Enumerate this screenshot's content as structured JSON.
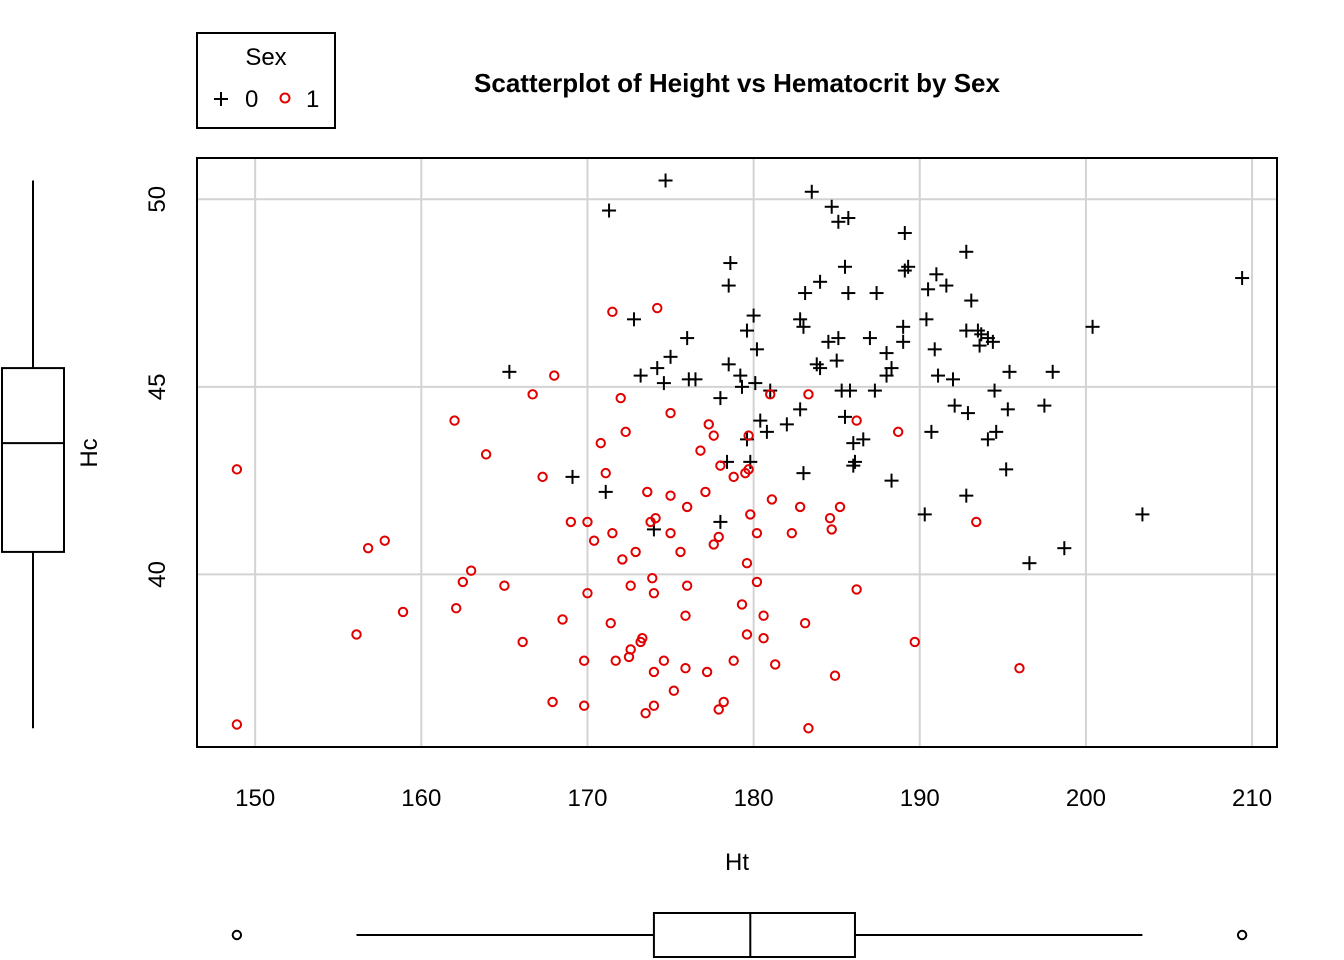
{
  "chart_data": {
    "type": "scatter",
    "title": "Scatterplot of Height vs Hematocrit by Sex",
    "xlabel": "Ht",
    "ylabel": "Hc",
    "xlim": [
      146.5,
      211.5
    ],
    "ylim": [
      35.4,
      51.1
    ],
    "xticks": [
      150,
      160,
      170,
      180,
      190,
      200,
      210
    ],
    "yticks": [
      40,
      45,
      50
    ],
    "grid": true,
    "legend": {
      "title": "Sex",
      "placement": "top-left",
      "entries": [
        "0",
        "1"
      ]
    },
    "series": [
      {
        "name": "0",
        "marker": "plus",
        "color": "#000000",
        "points": [
          [
            174.7,
            50.5
          ],
          [
            171.3,
            49.7
          ],
          [
            183.5,
            50.2
          ],
          [
            184.7,
            49.8
          ],
          [
            185.1,
            49.4
          ],
          [
            185.7,
            49.5
          ],
          [
            189.1,
            49.1
          ],
          [
            192.8,
            48.6
          ],
          [
            178.6,
            48.3
          ],
          [
            185.5,
            48.2
          ],
          [
            189.1,
            48.1
          ],
          [
            189.3,
            48.2
          ],
          [
            191.0,
            48.0
          ],
          [
            209.4,
            47.9
          ],
          [
            184.0,
            47.8
          ],
          [
            191.6,
            47.7
          ],
          [
            178.5,
            47.7
          ],
          [
            190.5,
            47.6
          ],
          [
            183.1,
            47.5
          ],
          [
            185.7,
            47.5
          ],
          [
            187.4,
            47.5
          ],
          [
            193.1,
            47.3
          ],
          [
            180.0,
            46.9
          ],
          [
            172.8,
            46.8
          ],
          [
            182.8,
            46.8
          ],
          [
            190.4,
            46.8
          ],
          [
            200.4,
            46.6
          ],
          [
            183.0,
            46.6
          ],
          [
            189.0,
            46.6
          ],
          [
            179.6,
            46.5
          ],
          [
            192.8,
            46.5
          ],
          [
            193.5,
            46.5
          ],
          [
            193.7,
            46.4
          ],
          [
            176.0,
            46.3
          ],
          [
            185.1,
            46.3
          ],
          [
            187.0,
            46.3
          ],
          [
            194.1,
            46.3
          ],
          [
            189.0,
            46.2
          ],
          [
            184.5,
            46.2
          ],
          [
            194.4,
            46.2
          ],
          [
            193.6,
            46.1
          ],
          [
            180.2,
            46.0
          ],
          [
            190.9,
            46.0
          ],
          [
            188.0,
            45.9
          ],
          [
            175.0,
            45.8
          ],
          [
            185.0,
            45.7
          ],
          [
            178.5,
            45.6
          ],
          [
            183.8,
            45.6
          ],
          [
            184.0,
            45.5
          ],
          [
            174.2,
            45.5
          ],
          [
            165.3,
            45.4
          ],
          [
            195.4,
            45.4
          ],
          [
            198.0,
            45.4
          ],
          [
            173.2,
            45.3
          ],
          [
            188.3,
            45.5
          ],
          [
            179.2,
            45.3
          ],
          [
            191.1,
            45.3
          ],
          [
            188.0,
            45.3
          ],
          [
            176.1,
            45.2
          ],
          [
            176.5,
            45.2
          ],
          [
            192.0,
            45.2
          ],
          [
            174.6,
            45.1
          ],
          [
            180.1,
            45.1
          ],
          [
            179.3,
            45.0
          ],
          [
            181.0,
            44.9
          ],
          [
            185.3,
            44.9
          ],
          [
            187.3,
            44.9
          ],
          [
            194.5,
            44.9
          ],
          [
            185.8,
            44.9
          ],
          [
            178.0,
            44.7
          ],
          [
            192.1,
            44.5
          ],
          [
            197.5,
            44.5
          ],
          [
            182.8,
            44.4
          ],
          [
            195.3,
            44.4
          ],
          [
            192.9,
            44.3
          ],
          [
            185.5,
            44.2
          ],
          [
            180.4,
            44.1
          ],
          [
            182.0,
            44.0
          ],
          [
            180.8,
            43.8
          ],
          [
            190.7,
            43.8
          ],
          [
            194.6,
            43.8
          ],
          [
            194.1,
            43.6
          ],
          [
            179.6,
            43.6
          ],
          [
            186.6,
            43.6
          ],
          [
            186.0,
            43.5
          ],
          [
            179.8,
            43.0
          ],
          [
            178.4,
            43.0
          ],
          [
            186.1,
            43.0
          ],
          [
            186.0,
            42.9
          ],
          [
            195.2,
            42.8
          ],
          [
            183.0,
            42.7
          ],
          [
            169.1,
            42.6
          ],
          [
            188.3,
            42.5
          ],
          [
            171.1,
            42.2
          ],
          [
            192.8,
            42.1
          ],
          [
            178.0,
            41.4
          ],
          [
            174.0,
            41.2
          ],
          [
            190.3,
            41.6
          ],
          [
            203.4,
            41.6
          ],
          [
            198.7,
            40.7
          ],
          [
            196.6,
            40.3
          ]
        ]
      },
      {
        "name": "1",
        "marker": "circle",
        "color": "#e00000",
        "points": [
          [
            174.2,
            47.1
          ],
          [
            171.5,
            47.0
          ],
          [
            168.0,
            45.3
          ],
          [
            166.7,
            44.8
          ],
          [
            172.0,
            44.7
          ],
          [
            181.0,
            44.8
          ],
          [
            183.3,
            44.8
          ],
          [
            175.0,
            44.3
          ],
          [
            162.0,
            44.1
          ],
          [
            186.2,
            44.1
          ],
          [
            177.3,
            44.0
          ],
          [
            172.3,
            43.8
          ],
          [
            188.7,
            43.8
          ],
          [
            177.6,
            43.7
          ],
          [
            179.7,
            43.7
          ],
          [
            170.8,
            43.5
          ],
          [
            176.8,
            43.3
          ],
          [
            163.9,
            43.2
          ],
          [
            148.9,
            42.8
          ],
          [
            179.7,
            42.8
          ],
          [
            178.0,
            42.9
          ],
          [
            171.1,
            42.7
          ],
          [
            179.5,
            42.7
          ],
          [
            178.8,
            42.6
          ],
          [
            167.3,
            42.6
          ],
          [
            173.6,
            42.2
          ],
          [
            177.1,
            42.2
          ],
          [
            175.0,
            42.1
          ],
          [
            181.1,
            42.0
          ],
          [
            176.0,
            41.8
          ],
          [
            182.8,
            41.8
          ],
          [
            185.2,
            41.8
          ],
          [
            179.8,
            41.6
          ],
          [
            184.6,
            41.5
          ],
          [
            169.0,
            41.4
          ],
          [
            170.0,
            41.4
          ],
          [
            173.8,
            41.4
          ],
          [
            174.1,
            41.5
          ],
          [
            193.4,
            41.4
          ],
          [
            184.7,
            41.2
          ],
          [
            171.5,
            41.1
          ],
          [
            175.0,
            41.1
          ],
          [
            180.2,
            41.1
          ],
          [
            182.3,
            41.1
          ],
          [
            177.9,
            41.0
          ],
          [
            170.4,
            40.9
          ],
          [
            157.8,
            40.9
          ],
          [
            177.6,
            40.8
          ],
          [
            156.8,
            40.7
          ],
          [
            172.9,
            40.6
          ],
          [
            175.6,
            40.6
          ],
          [
            172.1,
            40.4
          ],
          [
            179.6,
            40.3
          ],
          [
            163.0,
            40.1
          ],
          [
            173.9,
            39.9
          ],
          [
            162.5,
            39.8
          ],
          [
            180.2,
            39.8
          ],
          [
            165.0,
            39.7
          ],
          [
            172.6,
            39.7
          ],
          [
            176.0,
            39.7
          ],
          [
            186.2,
            39.6
          ],
          [
            170.0,
            39.5
          ],
          [
            174.0,
            39.5
          ],
          [
            179.3,
            39.2
          ],
          [
            162.1,
            39.1
          ],
          [
            158.9,
            39.0
          ],
          [
            175.9,
            38.9
          ],
          [
            180.6,
            38.9
          ],
          [
            168.5,
            38.8
          ],
          [
            171.4,
            38.7
          ],
          [
            183.1,
            38.7
          ],
          [
            156.1,
            38.4
          ],
          [
            179.6,
            38.4
          ],
          [
            180.6,
            38.3
          ],
          [
            166.1,
            38.2
          ],
          [
            173.2,
            38.2
          ],
          [
            173.3,
            38.3
          ],
          [
            189.7,
            38.2
          ],
          [
            172.6,
            38.0
          ],
          [
            172.5,
            37.8
          ],
          [
            169.8,
            37.7
          ],
          [
            171.7,
            37.7
          ],
          [
            174.6,
            37.7
          ],
          [
            178.8,
            37.7
          ],
          [
            181.3,
            37.6
          ],
          [
            175.9,
            37.5
          ],
          [
            196.0,
            37.5
          ],
          [
            174.0,
            37.4
          ],
          [
            177.2,
            37.4
          ],
          [
            184.9,
            37.3
          ],
          [
            175.2,
            36.9
          ],
          [
            167.9,
            36.6
          ],
          [
            169.8,
            36.5
          ],
          [
            174.0,
            36.5
          ],
          [
            178.2,
            36.6
          ],
          [
            177.9,
            36.4
          ],
          [
            173.5,
            36.3
          ],
          [
            148.9,
            36.0
          ],
          [
            183.3,
            35.9
          ]
        ]
      }
    ],
    "x_boxplot": {
      "whisker_low": 156.1,
      "q1": 174.0,
      "median": 179.8,
      "q3": 186.1,
      "whisker_high": 203.4,
      "outliers": [
        148.9,
        209.4
      ]
    },
    "y_boxplot": {
      "whisker_low": 35.9,
      "q1": 40.6,
      "median": 43.5,
      "q3": 45.5,
      "whisker_high": 50.5,
      "outliers": []
    }
  }
}
